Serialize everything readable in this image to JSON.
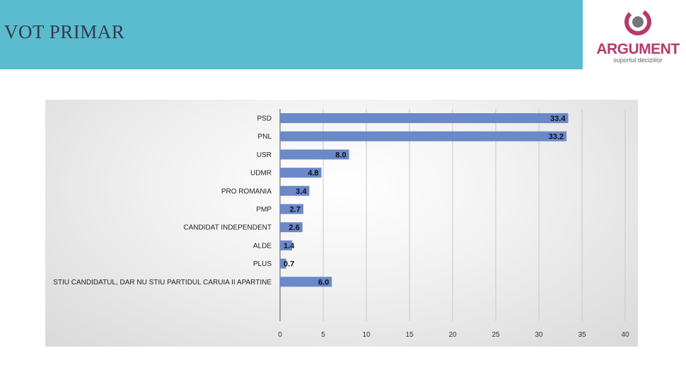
{
  "header": {
    "title": "VOT PRIMAR"
  },
  "logo": {
    "word": "ARGUMENT",
    "tagline": "suportul deciziilor"
  },
  "colors": {
    "band": "#5bbccf",
    "bar": "#6b88c8",
    "logo": "#b83a6b"
  },
  "chart_data": {
    "type": "bar",
    "orientation": "horizontal",
    "categories": [
      "PSD",
      "PNL",
      "USR",
      "UDMR",
      "PRO ROMANIA",
      "PMP",
      "CANDIDAT INDEPENDENT",
      "ALDE",
      "PLUS",
      "STIU CANDIDATUL, DAR NU STIU PARTIDUL CARUIA II APARTINE"
    ],
    "values": [
      33.4,
      33.2,
      8.0,
      4.8,
      3.4,
      2.7,
      2.6,
      1.4,
      0.7,
      6.0
    ],
    "value_labels": [
      "33.4",
      "33.2",
      "8.0",
      "4.8",
      "3.4",
      "2.7",
      "2.6",
      "1.4",
      "0.7",
      "6.0"
    ],
    "xlim": [
      0,
      40
    ],
    "xticks": [
      "0",
      "5",
      "10",
      "15",
      "20",
      "25",
      "30",
      "35",
      "40"
    ],
    "grid": true,
    "legend": false
  }
}
